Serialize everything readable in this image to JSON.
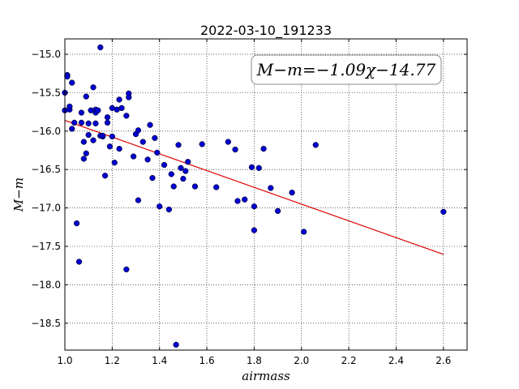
{
  "chart_data": {
    "type": "scatter",
    "title": "2022-03-10_191233",
    "xlabel": "airmass",
    "ylabel": "M−m",
    "xlim": [
      1.0,
      2.7
    ],
    "ylim": [
      -18.85,
      -14.8
    ],
    "xticks": [
      1.0,
      1.2,
      1.4,
      1.6,
      1.8,
      2.0,
      2.2,
      2.4,
      2.6
    ],
    "xtick_labels": [
      "1.0",
      "1.2",
      "1.4",
      "1.6",
      "1.8",
      "2.0",
      "2.2",
      "2.4",
      "2.6"
    ],
    "yticks": [
      -15.0,
      -15.5,
      -16.0,
      -16.5,
      -17.0,
      -17.5,
      -18.0,
      -18.5
    ],
    "ytick_labels": [
      "−15.0",
      "−15.5",
      "−16.0",
      "−16.5",
      "−17.0",
      "−17.5",
      "−18.0",
      "−18.5"
    ],
    "grid": true,
    "annotation": "M−m=−1.09χ−14.77",
    "annotation_placement": "top-right",
    "colors": {
      "points": "#0000cc",
      "fit_line": "#dd0000"
    },
    "fit": {
      "slope": -1.09,
      "intercept": -14.77,
      "x": [
        1.0,
        2.6
      ]
    },
    "series": [
      {
        "points": [
          [
            1.0,
            -15.5
          ],
          [
            1.0,
            -15.73
          ],
          [
            1.01,
            -15.27
          ],
          [
            1.01,
            -15.29
          ],
          [
            1.02,
            -15.72
          ],
          [
            1.02,
            -15.68
          ],
          [
            1.03,
            -15.37
          ],
          [
            1.03,
            -15.97
          ],
          [
            1.04,
            -15.89
          ],
          [
            1.05,
            -17.2
          ],
          [
            1.06,
            -17.7
          ],
          [
            1.07,
            -15.76
          ],
          [
            1.07,
            -15.89
          ],
          [
            1.08,
            -16.14
          ],
          [
            1.08,
            -16.36
          ],
          [
            1.09,
            -16.29
          ],
          [
            1.09,
            -15.55
          ],
          [
            1.1,
            -15.9
          ],
          [
            1.1,
            -16.05
          ],
          [
            1.11,
            -15.73
          ],
          [
            1.12,
            -15.43
          ],
          [
            1.12,
            -16.12
          ],
          [
            1.13,
            -15.9
          ],
          [
            1.13,
            -15.72
          ],
          [
            1.13,
            -15.76
          ],
          [
            1.14,
            -15.73
          ],
          [
            1.15,
            -14.91
          ],
          [
            1.15,
            -16.06
          ],
          [
            1.16,
            -16.07
          ],
          [
            1.16,
            -16.06
          ],
          [
            1.17,
            -16.58
          ],
          [
            1.18,
            -15.82
          ],
          [
            1.18,
            -15.89
          ],
          [
            1.19,
            -16.2
          ],
          [
            1.2,
            -16.07
          ],
          [
            1.2,
            -15.7
          ],
          [
            1.21,
            -16.41
          ],
          [
            1.22,
            -15.72
          ],
          [
            1.23,
            -15.59
          ],
          [
            1.23,
            -16.23
          ],
          [
            1.24,
            -15.7
          ],
          [
            1.26,
            -17.8
          ],
          [
            1.26,
            -15.8
          ],
          [
            1.27,
            -15.56
          ],
          [
            1.27,
            -15.51
          ],
          [
            1.29,
            -16.33
          ],
          [
            1.3,
            -16.04
          ],
          [
            1.31,
            -15.99
          ],
          [
            1.31,
            -16.9
          ],
          [
            1.33,
            -16.14
          ],
          [
            1.35,
            -16.37
          ],
          [
            1.36,
            -15.92
          ],
          [
            1.37,
            -16.61
          ],
          [
            1.38,
            -16.09
          ],
          [
            1.39,
            -16.28
          ],
          [
            1.4,
            -16.98
          ],
          [
            1.42,
            -16.44
          ],
          [
            1.44,
            -17.02
          ],
          [
            1.45,
            -16.56
          ],
          [
            1.46,
            -16.72
          ],
          [
            1.47,
            -18.78
          ],
          [
            1.48,
            -16.18
          ],
          [
            1.49,
            -16.48
          ],
          [
            1.5,
            -16.62
          ],
          [
            1.51,
            -16.52
          ],
          [
            1.52,
            -16.4
          ],
          [
            1.55,
            -16.72
          ],
          [
            1.58,
            -16.17
          ],
          [
            1.64,
            -16.73
          ],
          [
            1.69,
            -16.14
          ],
          [
            1.72,
            -16.24
          ],
          [
            1.73,
            -16.91
          ],
          [
            1.76,
            -16.89
          ],
          [
            1.79,
            -16.47
          ],
          [
            1.8,
            -16.98
          ],
          [
            1.8,
            -17.29
          ],
          [
            1.82,
            -16.48
          ],
          [
            1.84,
            -16.23
          ],
          [
            1.87,
            -16.74
          ],
          [
            1.9,
            -17.04
          ],
          [
            1.96,
            -16.8
          ],
          [
            2.01,
            -17.31
          ],
          [
            2.06,
            -16.18
          ],
          [
            2.6,
            -17.05
          ]
        ]
      }
    ]
  }
}
